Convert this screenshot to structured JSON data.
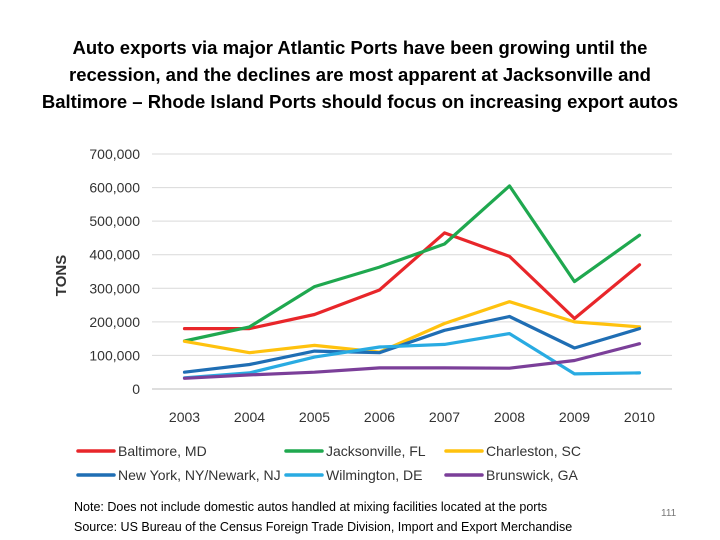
{
  "slide": {
    "title_lines": [
      "Auto exports via major Atlantic Ports have been growing until the",
      "recession, and the declines are most apparent at Jacksonville and",
      "Baltimore – Rhode Island Ports should focus on increasing export autos"
    ],
    "note": "Note: Does not include domestic autos handled at mixing facilities located at the ports",
    "source": "Source: US Bureau of the Census Foreign Trade Division, Import and Export Merchandise",
    "page_number": "111"
  },
  "chart_data": {
    "type": "line",
    "title": "",
    "xlabel": "",
    "ylabel": "TONS",
    "x": [
      "2003",
      "2004",
      "2005",
      "2006",
      "2007",
      "2008",
      "2009",
      "2010"
    ],
    "ylim": [
      0,
      700000
    ],
    "yticks": [
      0,
      100000,
      200000,
      300000,
      400000,
      500000,
      600000,
      700000
    ],
    "ytick_labels": [
      "0",
      "100,000",
      "200,000",
      "300,000",
      "400,000",
      "500,000",
      "600,000",
      "700,000"
    ],
    "grid": true,
    "legend_position": "bottom",
    "series": [
      {
        "name": "Baltimore, MD",
        "color": "#e8262a",
        "values": [
          180000,
          180000,
          222000,
          295000,
          465000,
          395000,
          210000,
          370000
        ]
      },
      {
        "name": "Jacksonville, FL",
        "color": "#1fa84f",
        "values": [
          143000,
          185000,
          305000,
          363000,
          432000,
          605000,
          320000,
          458000
        ]
      },
      {
        "name": "Charleston, SC",
        "color": "#ffc20e",
        "values": [
          142000,
          108000,
          130000,
          110000,
          195000,
          260000,
          200000,
          185000
        ]
      },
      {
        "name": "New York, NY/Newark, NJ",
        "color": "#1f6eb4",
        "values": [
          50000,
          73000,
          113000,
          108000,
          175000,
          216000,
          122000,
          180000
        ]
      },
      {
        "name": "Wilmington, DE",
        "color": "#29abe2",
        "values": [
          33000,
          48000,
          95000,
          125000,
          133000,
          165000,
          45000,
          48000
        ]
      },
      {
        "name": "Brunswick, GA",
        "color": "#7b3f99",
        "values": [
          32000,
          42000,
          50000,
          63000,
          63000,
          62000,
          85000,
          135000
        ]
      }
    ]
  }
}
